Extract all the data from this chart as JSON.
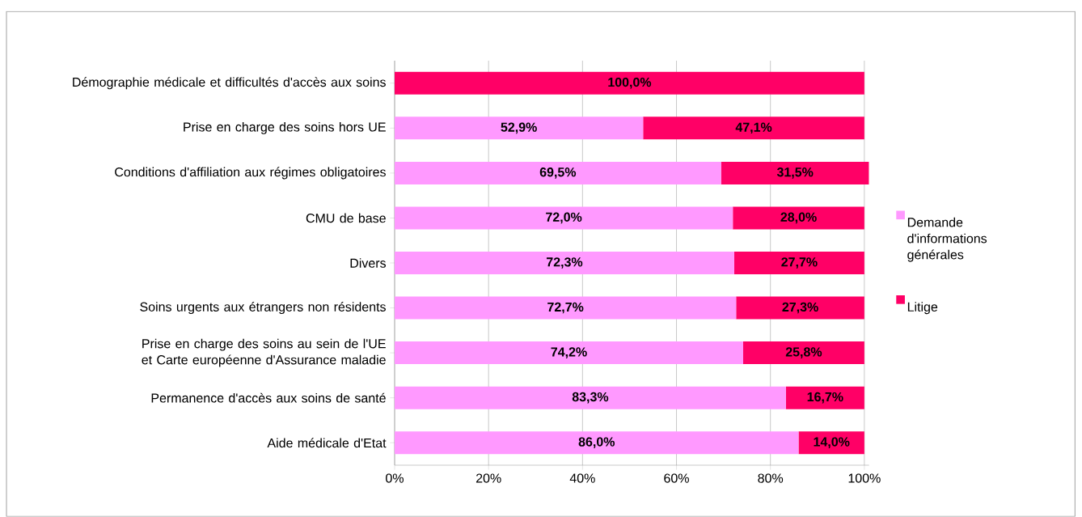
{
  "chart_data": {
    "type": "bar",
    "orientation": "horizontal",
    "stacked": true,
    "categories": [
      "Démographie médicale et difficultés d'accès aux soins",
      "Prise en charge des soins hors UE",
      "Conditions d'affiliation aux régimes obligatoires",
      "CMU de base",
      "Divers",
      "Soins urgents aux étrangers non résidents",
      "Prise en charge des soins au sein de l'UE et Carte européenne d'Assurance maladie",
      "Permanence d'accès aux soins de santé",
      "Aide médicale d'Etat"
    ],
    "series": [
      {
        "name": "Demande d'informations générales",
        "color": "#ff99ff",
        "values": [
          0,
          52.9,
          69.5,
          72.0,
          72.3,
          72.7,
          74.2,
          83.3,
          86.0
        ],
        "value_labels": [
          null,
          "52,9%",
          "69,5%",
          "72,0%",
          "72,3%",
          "72,7%",
          "74,2%",
          "83,3%",
          "86,0%"
        ]
      },
      {
        "name": "Litige",
        "color": "#ff0066",
        "values": [
          100.0,
          47.1,
          31.5,
          28.0,
          27.7,
          27.3,
          25.8,
          16.7,
          14.0
        ],
        "value_labels": [
          "100,0%",
          "47,1%",
          "31,5%",
          "28,0%",
          "27,7%",
          "27,3%",
          "25,8%",
          "16,7%",
          "14,0%"
        ]
      }
    ],
    "xlim": [
      0,
      101
    ],
    "xticks": [
      {
        "value": 0,
        "label": "0%"
      },
      {
        "value": 20,
        "label": "20%"
      },
      {
        "value": 40,
        "label": "40%"
      },
      {
        "value": 60,
        "label": "60%"
      },
      {
        "value": 80,
        "label": "80%"
      },
      {
        "value": 100,
        "label": "100%"
      }
    ],
    "grid": "x",
    "legend": "right"
  }
}
